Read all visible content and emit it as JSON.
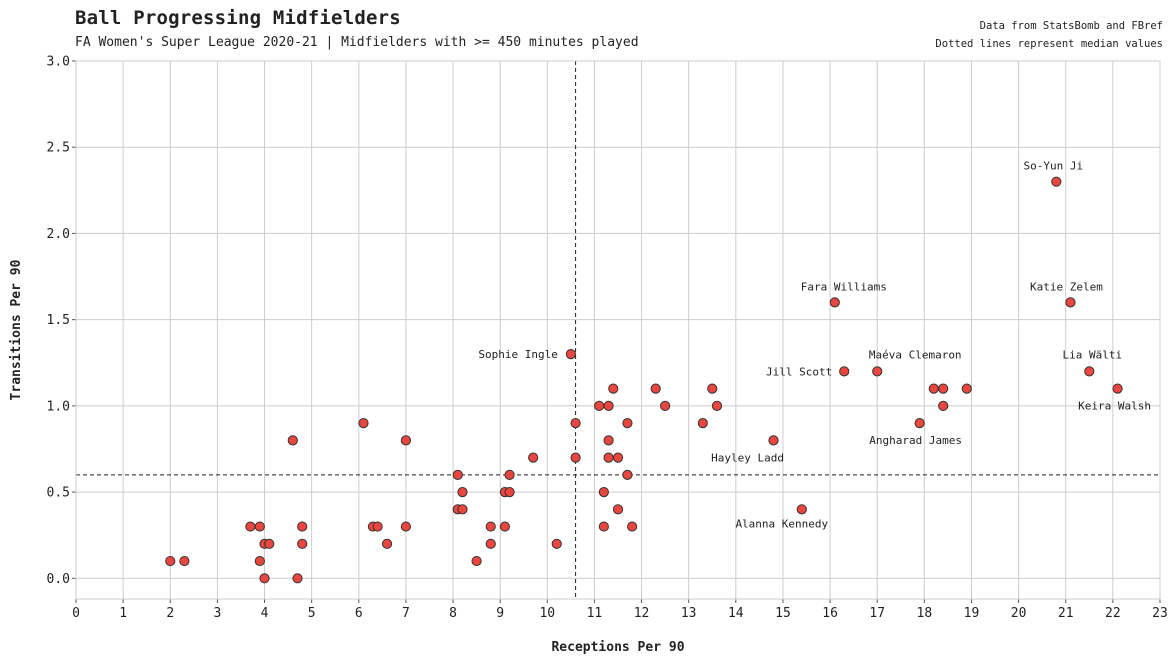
{
  "header": {
    "title": "Ball Progressing Midfielders",
    "subtitle": "FA Women's Super League 2020-21 | Midfielders with >= 450 minutes played",
    "note_source": "Data from StatsBomb and FBref",
    "note_lines": "Dotted lines represent median values"
  },
  "chart_data": {
    "type": "scatter",
    "title": "Ball Progressing Midfielders",
    "subtitle": "FA Women's Super League 2020-21 | Midfielders with >= 450 minutes played",
    "xlabel": "Receptions Per 90",
    "ylabel": "Transitions Per 90",
    "xlim": [
      0,
      23
    ],
    "ylim": [
      -0.12,
      3.0
    ],
    "xticks": [
      0,
      1,
      2,
      3,
      4,
      5,
      6,
      7,
      8,
      9,
      10,
      11,
      12,
      13,
      14,
      15,
      16,
      17,
      18,
      19,
      20,
      21,
      22,
      23
    ],
    "yticks": [
      0.0,
      0.5,
      1.0,
      1.5,
      2.0,
      2.5,
      3.0
    ],
    "ytick_labels": [
      "0.0",
      "0.5",
      "1.0",
      "1.5",
      "2.0",
      "2.5",
      "3.0"
    ],
    "grid": true,
    "median_x": 10.6,
    "median_y": 0.6,
    "marker_color": "#e8463f",
    "marker_edge": "#333333",
    "grid_color": "#cccccc",
    "points": [
      {
        "x": 2.0,
        "y": 0.1
      },
      {
        "x": 2.3,
        "y": 0.1
      },
      {
        "x": 3.7,
        "y": 0.3
      },
      {
        "x": 3.9,
        "y": 0.3
      },
      {
        "x": 3.9,
        "y": 0.1
      },
      {
        "x": 4.0,
        "y": 0.2
      },
      {
        "x": 4.1,
        "y": 0.2
      },
      {
        "x": 4.0,
        "y": 0.0
      },
      {
        "x": 4.6,
        "y": 0.8
      },
      {
        "x": 4.7,
        "y": 0.0
      },
      {
        "x": 4.8,
        "y": 0.3
      },
      {
        "x": 4.8,
        "y": 0.2
      },
      {
        "x": 6.1,
        "y": 0.9
      },
      {
        "x": 6.3,
        "y": 0.3
      },
      {
        "x": 6.4,
        "y": 0.3
      },
      {
        "x": 6.6,
        "y": 0.2
      },
      {
        "x": 7.0,
        "y": 0.8
      },
      {
        "x": 7.0,
        "y": 0.3
      },
      {
        "x": 8.1,
        "y": 0.6
      },
      {
        "x": 8.2,
        "y": 0.5
      },
      {
        "x": 8.1,
        "y": 0.4
      },
      {
        "x": 8.2,
        "y": 0.4
      },
      {
        "x": 8.5,
        "y": 0.1
      },
      {
        "x": 8.8,
        "y": 0.3
      },
      {
        "x": 8.8,
        "y": 0.2
      },
      {
        "x": 9.1,
        "y": 0.5
      },
      {
        "x": 9.2,
        "y": 0.5
      },
      {
        "x": 9.2,
        "y": 0.6
      },
      {
        "x": 9.1,
        "y": 0.3
      },
      {
        "x": 9.7,
        "y": 0.7
      },
      {
        "x": 10.2,
        "y": 0.2
      },
      {
        "x": 10.5,
        "y": 1.3,
        "label": "Sophie Ingle",
        "anchor": "end",
        "dx": -13,
        "dy": 4
      },
      {
        "x": 10.6,
        "y": 0.9
      },
      {
        "x": 10.6,
        "y": 0.7
      },
      {
        "x": 11.1,
        "y": 1.0
      },
      {
        "x": 11.3,
        "y": 1.0
      },
      {
        "x": 11.4,
        "y": 1.1
      },
      {
        "x": 11.3,
        "y": 0.8
      },
      {
        "x": 11.3,
        "y": 0.7
      },
      {
        "x": 11.5,
        "y": 0.7
      },
      {
        "x": 11.2,
        "y": 0.5
      },
      {
        "x": 11.2,
        "y": 0.3
      },
      {
        "x": 11.5,
        "y": 0.4
      },
      {
        "x": 11.7,
        "y": 0.9
      },
      {
        "x": 11.7,
        "y": 0.6
      },
      {
        "x": 11.8,
        "y": 0.3
      },
      {
        "x": 12.3,
        "y": 1.1
      },
      {
        "x": 12.5,
        "y": 1.0
      },
      {
        "x": 13.3,
        "y": 0.9
      },
      {
        "x": 13.5,
        "y": 1.1
      },
      {
        "x": 13.6,
        "y": 1.0
      },
      {
        "x": 14.8,
        "y": 0.8,
        "label": "Hayley Ladd",
        "anchor": "middle",
        "dx": -26,
        "dy": 21
      },
      {
        "x": 15.4,
        "y": 0.4,
        "label": "Alanna Kennedy",
        "anchor": "middle",
        "dx": -20,
        "dy": 18
      },
      {
        "x": 16.1,
        "y": 1.6,
        "label": "Fara Williams",
        "anchor": "middle",
        "dx": 9,
        "dy": -12
      },
      {
        "x": 16.3,
        "y": 1.2,
        "label": "Jill Scott",
        "anchor": "end",
        "dx": -12,
        "dy": 4
      },
      {
        "x": 17.0,
        "y": 1.2,
        "label": "Maéva Clemaron",
        "anchor": "middle",
        "dx": 38,
        "dy": -13
      },
      {
        "x": 17.9,
        "y": 0.9,
        "label": "Angharad James",
        "anchor": "middle",
        "dx": -4,
        "dy": 21
      },
      {
        "x": 18.2,
        "y": 1.1
      },
      {
        "x": 18.4,
        "y": 1.1
      },
      {
        "x": 18.4,
        "y": 1.0
      },
      {
        "x": 18.9,
        "y": 1.1
      },
      {
        "x": 20.8,
        "y": 2.3,
        "label": "So-Yun Ji",
        "anchor": "middle",
        "dx": -3,
        "dy": -12
      },
      {
        "x": 21.1,
        "y": 1.6,
        "label": "Katie Zelem",
        "anchor": "middle",
        "dx": -4,
        "dy": -12
      },
      {
        "x": 21.5,
        "y": 1.2,
        "label": "Lia Wälti",
        "anchor": "middle",
        "dx": 3,
        "dy": -13
      },
      {
        "x": 22.1,
        "y": 1.1,
        "label": "Keira Walsh",
        "anchor": "middle",
        "dx": -3,
        "dy": 21
      }
    ]
  }
}
